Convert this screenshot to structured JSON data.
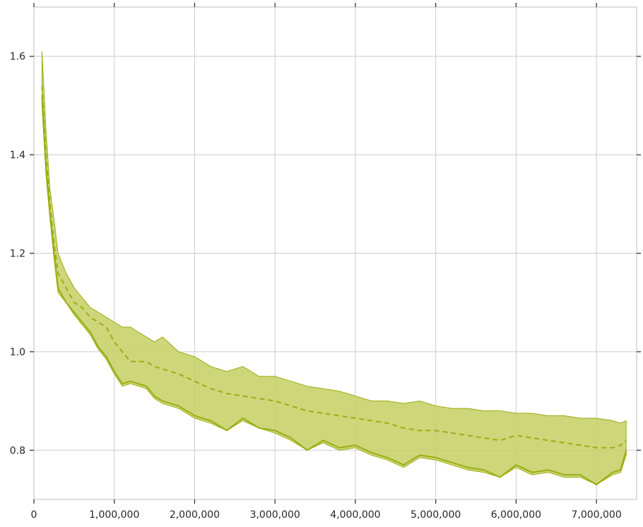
{
  "chart_data": {
    "type": "line",
    "title": "",
    "xlabel": "",
    "ylabel": "",
    "xlim": [
      0,
      7500000
    ],
    "ylim": [
      0.7,
      1.7
    ],
    "x_ticks": [
      0,
      1000000,
      2000000,
      3000000,
      4000000,
      5000000,
      6000000,
      7000000
    ],
    "x_tick_labels": [
      "0",
      "1,000,000",
      "2,000,000",
      "3,000,000",
      "4,000,000",
      "5,000,000",
      "6,000,000",
      "7,000,000"
    ],
    "y_ticks": [
      0.8,
      1.0,
      1.2,
      1.4,
      1.6
    ],
    "y_tick_labels": [
      "0.8",
      "1.0",
      "1.2",
      "1.4",
      "1.6"
    ],
    "grid": true,
    "color": "#9aad12",
    "band_color": "#c6cf63",
    "series": [
      {
        "style": "dashed",
        "x": [
          100000,
          150000,
          200000,
          250000,
          300000,
          400000,
          500000,
          600000,
          700000,
          800000,
          900000,
          1000000,
          1100000,
          1200000,
          1400000,
          1500000,
          1600000,
          1800000,
          2000000,
          2200000,
          2400000,
          2600000,
          2800000,
          3000000,
          3200000,
          3400000,
          3600000,
          3800000,
          4000000,
          4200000,
          4400000,
          4600000,
          4800000,
          5000000,
          5200000,
          5400000,
          5600000,
          5800000,
          6000000,
          6200000,
          6400000,
          6600000,
          6800000,
          7000000,
          7200000,
          7300000,
          7370000
        ],
        "y": [
          1.54,
          1.4,
          1.3,
          1.22,
          1.16,
          1.13,
          1.1,
          1.09,
          1.07,
          1.06,
          1.05,
          1.02,
          1.0,
          0.98,
          0.98,
          0.97,
          0.965,
          0.955,
          0.94,
          0.925,
          0.915,
          0.91,
          0.905,
          0.9,
          0.89,
          0.88,
          0.875,
          0.87,
          0.865,
          0.86,
          0.855,
          0.845,
          0.84,
          0.84,
          0.835,
          0.83,
          0.825,
          0.82,
          0.83,
          0.825,
          0.82,
          0.815,
          0.81,
          0.805,
          0.805,
          0.81,
          0.82
        ]
      },
      {
        "style": "solid",
        "x": [
          100000,
          150000,
          200000,
          250000,
          300000,
          400000,
          500000,
          600000,
          700000,
          800000,
          900000,
          1000000,
          1100000,
          1200000,
          1400000,
          1500000,
          1600000,
          1800000,
          2000000,
          2200000,
          2400000,
          2600000,
          2800000,
          3000000,
          3200000,
          3400000,
          3600000,
          3800000,
          4000000,
          4200000,
          4400000,
          4600000,
          4800000,
          5000000,
          5200000,
          5400000,
          5600000,
          5800000,
          6000000,
          6200000,
          6400000,
          6600000,
          6800000,
          7000000,
          7200000,
          7300000,
          7370000
        ],
        "y": [
          1.52,
          1.37,
          1.28,
          1.2,
          1.13,
          1.1,
          1.08,
          1.06,
          1.04,
          1.01,
          0.99,
          0.96,
          0.935,
          0.94,
          0.93,
          0.91,
          0.9,
          0.89,
          0.87,
          0.86,
          0.84,
          0.865,
          0.845,
          0.84,
          0.825,
          0.8,
          0.82,
          0.805,
          0.81,
          0.795,
          0.785,
          0.77,
          0.79,
          0.785,
          0.775,
          0.765,
          0.76,
          0.745,
          0.77,
          0.755,
          0.76,
          0.75,
          0.75,
          0.73,
          0.755,
          0.76,
          0.8
        ]
      }
    ],
    "band": {
      "x": [
        100000,
        150000,
        200000,
        250000,
        300000,
        400000,
        500000,
        600000,
        700000,
        800000,
        900000,
        1000000,
        1100000,
        1200000,
        1400000,
        1500000,
        1600000,
        1800000,
        2000000,
        2200000,
        2400000,
        2600000,
        2800000,
        3000000,
        3200000,
        3400000,
        3600000,
        3800000,
        4000000,
        4200000,
        4400000,
        4600000,
        4800000,
        5000000,
        5200000,
        5400000,
        5600000,
        5800000,
        6000000,
        6200000,
        6400000,
        6600000,
        6800000,
        7000000,
        7200000,
        7300000,
        7370000
      ],
      "lower": [
        1.5,
        1.36,
        1.27,
        1.19,
        1.12,
        1.1,
        1.075,
        1.055,
        1.035,
        1.005,
        0.985,
        0.955,
        0.93,
        0.935,
        0.925,
        0.905,
        0.895,
        0.885,
        0.865,
        0.855,
        0.84,
        0.86,
        0.845,
        0.835,
        0.82,
        0.8,
        0.815,
        0.8,
        0.805,
        0.79,
        0.78,
        0.765,
        0.785,
        0.78,
        0.77,
        0.76,
        0.755,
        0.745,
        0.765,
        0.75,
        0.755,
        0.745,
        0.745,
        0.73,
        0.75,
        0.755,
        0.79
      ],
      "upper": [
        1.61,
        1.45,
        1.33,
        1.27,
        1.2,
        1.16,
        1.13,
        1.11,
        1.09,
        1.08,
        1.07,
        1.06,
        1.05,
        1.05,
        1.03,
        1.02,
        1.03,
        1.0,
        0.99,
        0.97,
        0.96,
        0.97,
        0.95,
        0.95,
        0.94,
        0.93,
        0.925,
        0.92,
        0.91,
        0.9,
        0.9,
        0.895,
        0.9,
        0.89,
        0.885,
        0.885,
        0.88,
        0.88,
        0.875,
        0.875,
        0.87,
        0.87,
        0.865,
        0.865,
        0.86,
        0.855,
        0.86
      ]
    }
  }
}
